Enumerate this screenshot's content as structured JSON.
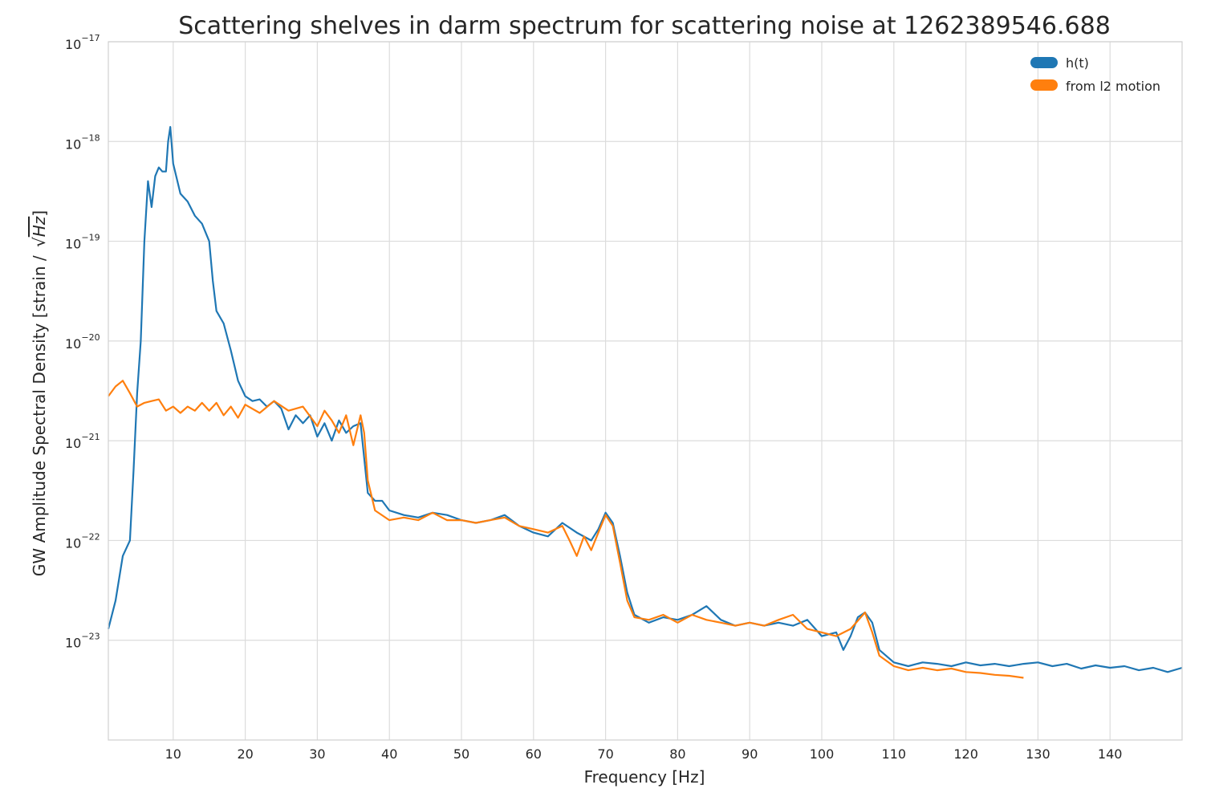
{
  "chart_data": {
    "type": "line",
    "title": "Scattering shelves in darm spectrum for scattering noise at 1262389546.688",
    "xlabel": "Frequency [Hz]",
    "ylabel": "GW Amplitude Spectral Density [strain / √Hz]",
    "ylabel_text": "GW Amplitude Spectral Density [strain /",
    "ylabel_sqrt": "Hz",
    "ylabel_close": "]",
    "xlim": [
      1,
      150
    ],
    "ylim": [
      1e-24,
      1e-17
    ],
    "yscale": "log",
    "grid": true,
    "legend_position": "top-right",
    "x_ticks": [
      "10",
      "20",
      "30",
      "40",
      "50",
      "60",
      "70",
      "80",
      "90",
      "100",
      "110",
      "120",
      "130",
      "140"
    ],
    "y_ticks": [
      {
        "base": "10",
        "exp": "−17"
      },
      {
        "base": "10",
        "exp": "−18"
      },
      {
        "base": "10",
        "exp": "−19"
      },
      {
        "base": "10",
        "exp": "−20"
      },
      {
        "base": "10",
        "exp": "−21"
      },
      {
        "base": "10",
        "exp": "−22"
      },
      {
        "base": "10",
        "exp": "−23"
      }
    ],
    "series": [
      {
        "name": "h(t)",
        "color": "#1f77b4",
        "points": [
          [
            1,
            1.3e-23
          ],
          [
            2,
            2.5e-23
          ],
          [
            3,
            7e-23
          ],
          [
            4,
            1e-22
          ],
          [
            4.5,
            5e-22
          ],
          [
            5,
            3e-21
          ],
          [
            5.5,
            1e-20
          ],
          [
            6,
            1e-19
          ],
          [
            6.5,
            4e-19
          ],
          [
            7,
            2.2e-19
          ],
          [
            7.5,
            4.5e-19
          ],
          [
            8,
            5.5e-19
          ],
          [
            8.5,
            5e-19
          ],
          [
            9,
            5e-19
          ],
          [
            9.3,
            1e-18
          ],
          [
            9.6,
            1.4e-18
          ],
          [
            10,
            6e-19
          ],
          [
            11,
            3e-19
          ],
          [
            12,
            2.5e-19
          ],
          [
            13,
            1.8e-19
          ],
          [
            14,
            1.5e-19
          ],
          [
            15,
            1e-19
          ],
          [
            15.5,
            4e-20
          ],
          [
            16,
            2e-20
          ],
          [
            17,
            1.5e-20
          ],
          [
            18,
            8e-21
          ],
          [
            19,
            4e-21
          ],
          [
            20,
            2.8e-21
          ],
          [
            21,
            2.5e-21
          ],
          [
            22,
            2.6e-21
          ],
          [
            23,
            2.2e-21
          ],
          [
            24,
            2.5e-21
          ],
          [
            25,
            2.1e-21
          ],
          [
            26,
            1.3e-21
          ],
          [
            27,
            1.8e-21
          ],
          [
            28,
            1.5e-21
          ],
          [
            29,
            1.8e-21
          ],
          [
            30,
            1.1e-21
          ],
          [
            31,
            1.5e-21
          ],
          [
            32,
            1e-21
          ],
          [
            33,
            1.6e-21
          ],
          [
            34,
            1.2e-21
          ],
          [
            35,
            1.4e-21
          ],
          [
            36,
            1.5e-21
          ],
          [
            37,
            3e-22
          ],
          [
            38,
            2.5e-22
          ],
          [
            39,
            2.5e-22
          ],
          [
            40,
            2e-22
          ],
          [
            42,
            1.8e-22
          ],
          [
            44,
            1.7e-22
          ],
          [
            46,
            1.9e-22
          ],
          [
            48,
            1.8e-22
          ],
          [
            50,
            1.6e-22
          ],
          [
            52,
            1.5e-22
          ],
          [
            54,
            1.6e-22
          ],
          [
            56,
            1.8e-22
          ],
          [
            58,
            1.4e-22
          ],
          [
            60,
            1.2e-22
          ],
          [
            62,
            1.1e-22
          ],
          [
            64,
            1.5e-22
          ],
          [
            66,
            1.2e-22
          ],
          [
            68,
            1e-22
          ],
          [
            69,
            1.3e-22
          ],
          [
            70,
            1.9e-22
          ],
          [
            71,
            1.5e-22
          ],
          [
            72,
            7e-23
          ],
          [
            73,
            3e-23
          ],
          [
            74,
            1.8e-23
          ],
          [
            76,
            1.5e-23
          ],
          [
            78,
            1.7e-23
          ],
          [
            80,
            1.6e-23
          ],
          [
            82,
            1.8e-23
          ],
          [
            84,
            2.2e-23
          ],
          [
            86,
            1.6e-23
          ],
          [
            88,
            1.4e-23
          ],
          [
            90,
            1.5e-23
          ],
          [
            92,
            1.4e-23
          ],
          [
            94,
            1.5e-23
          ],
          [
            96,
            1.4e-23
          ],
          [
            98,
            1.6e-23
          ],
          [
            100,
            1.1e-23
          ],
          [
            102,
            1.2e-23
          ],
          [
            103,
            8e-24
          ],
          [
            104,
            1.1e-23
          ],
          [
            105,
            1.7e-23
          ],
          [
            106,
            1.9e-23
          ],
          [
            107,
            1.5e-23
          ],
          [
            108,
            8e-24
          ],
          [
            110,
            6e-24
          ],
          [
            112,
            5.5e-24
          ],
          [
            114,
            6e-24
          ],
          [
            116,
            5.8e-24
          ],
          [
            118,
            5.5e-24
          ],
          [
            120,
            6e-24
          ],
          [
            122,
            5.6e-24
          ],
          [
            124,
            5.8e-24
          ],
          [
            126,
            5.5e-24
          ],
          [
            128,
            5.8e-24
          ],
          [
            130,
            6e-24
          ],
          [
            132,
            5.5e-24
          ],
          [
            134,
            5.8e-24
          ],
          [
            136,
            5.2e-24
          ],
          [
            138,
            5.6e-24
          ],
          [
            140,
            5.3e-24
          ],
          [
            142,
            5.5e-24
          ],
          [
            144,
            5e-24
          ],
          [
            146,
            5.3e-24
          ],
          [
            148,
            4.8e-24
          ],
          [
            150,
            5.3e-24
          ]
        ]
      },
      {
        "name": "from l2 motion",
        "color": "#ff7f0e",
        "points": [
          [
            1,
            2.8e-21
          ],
          [
            2,
            3.5e-21
          ],
          [
            3,
            4e-21
          ],
          [
            4,
            3e-21
          ],
          [
            5,
            2.2e-21
          ],
          [
            6,
            2.4e-21
          ],
          [
            7,
            2.5e-21
          ],
          [
            8,
            2.6e-21
          ],
          [
            9,
            2e-21
          ],
          [
            10,
            2.2e-21
          ],
          [
            11,
            1.9e-21
          ],
          [
            12,
            2.2e-21
          ],
          [
            13,
            2e-21
          ],
          [
            14,
            2.4e-21
          ],
          [
            15,
            2e-21
          ],
          [
            16,
            2.4e-21
          ],
          [
            17,
            1.8e-21
          ],
          [
            18,
            2.2e-21
          ],
          [
            19,
            1.7e-21
          ],
          [
            20,
            2.3e-21
          ],
          [
            22,
            1.9e-21
          ],
          [
            24,
            2.5e-21
          ],
          [
            26,
            2e-21
          ],
          [
            28,
            2.2e-21
          ],
          [
            30,
            1.4e-21
          ],
          [
            31,
            2e-21
          ],
          [
            32,
            1.6e-21
          ],
          [
            33,
            1.2e-21
          ],
          [
            34,
            1.8e-21
          ],
          [
            35,
            9e-22
          ],
          [
            36,
            1.8e-21
          ],
          [
            36.5,
            1.2e-21
          ],
          [
            37,
            4e-22
          ],
          [
            38,
            2e-22
          ],
          [
            40,
            1.6e-22
          ],
          [
            42,
            1.7e-22
          ],
          [
            44,
            1.6e-22
          ],
          [
            46,
            1.9e-22
          ],
          [
            48,
            1.6e-22
          ],
          [
            50,
            1.6e-22
          ],
          [
            52,
            1.5e-22
          ],
          [
            54,
            1.6e-22
          ],
          [
            56,
            1.7e-22
          ],
          [
            58,
            1.4e-22
          ],
          [
            60,
            1.3e-22
          ],
          [
            62,
            1.2e-22
          ],
          [
            64,
            1.4e-22
          ],
          [
            65,
            1e-22
          ],
          [
            66,
            7e-23
          ],
          [
            67,
            1.1e-22
          ],
          [
            68,
            8e-23
          ],
          [
            69,
            1.2e-22
          ],
          [
            70,
            1.8e-22
          ],
          [
            71,
            1.4e-22
          ],
          [
            72,
            6e-23
          ],
          [
            73,
            2.5e-23
          ],
          [
            74,
            1.7e-23
          ],
          [
            76,
            1.6e-23
          ],
          [
            78,
            1.8e-23
          ],
          [
            80,
            1.5e-23
          ],
          [
            82,
            1.8e-23
          ],
          [
            84,
            1.6e-23
          ],
          [
            86,
            1.5e-23
          ],
          [
            88,
            1.4e-23
          ],
          [
            90,
            1.5e-23
          ],
          [
            92,
            1.4e-23
          ],
          [
            94,
            1.6e-23
          ],
          [
            96,
            1.8e-23
          ],
          [
            98,
            1.3e-23
          ],
          [
            100,
            1.2e-23
          ],
          [
            102,
            1.1e-23
          ],
          [
            104,
            1.3e-23
          ],
          [
            106,
            1.9e-23
          ],
          [
            107,
            1.2e-23
          ],
          [
            108,
            7e-24
          ],
          [
            110,
            5.5e-24
          ],
          [
            112,
            5e-24
          ],
          [
            114,
            5.3e-24
          ],
          [
            116,
            5e-24
          ],
          [
            118,
            5.2e-24
          ],
          [
            120,
            4.8e-24
          ],
          [
            122,
            4.7e-24
          ],
          [
            124,
            4.5e-24
          ],
          [
            126,
            4.4e-24
          ],
          [
            128,
            4.2e-24
          ]
        ]
      }
    ]
  }
}
